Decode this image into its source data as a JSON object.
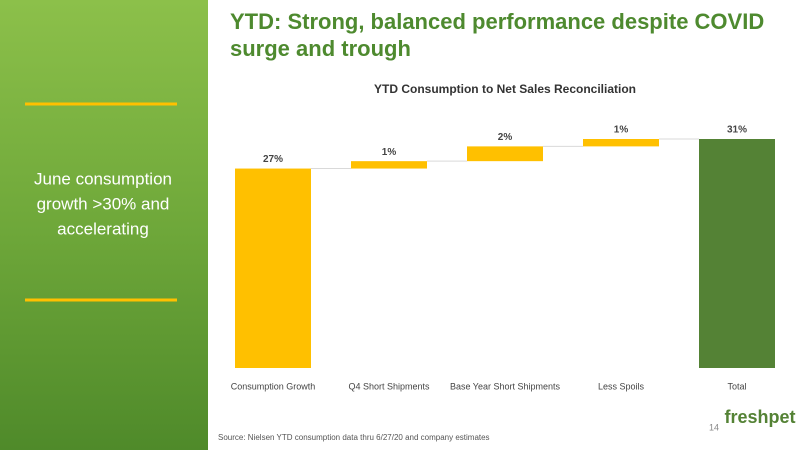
{
  "slide": {
    "title_lines": [
      "YTD:  Strong, balanced performance despite COVID",
      "surge and trough"
    ],
    "sidebar_lines": [
      "June consumption",
      "growth >30% and",
      "accelerating"
    ],
    "source": "Source:  Nielsen YTD consumption data thru 6/27/20 and company estimates",
    "page_number": "14",
    "logo": "freshpet"
  },
  "chart_data": {
    "type": "waterfall",
    "title": "YTD Consumption to Net Sales Reconciliation",
    "categories": [
      "Consumption Growth",
      "Q4 Short Shipments",
      "Base Year Short Shipments",
      "Less Spoils",
      "Total"
    ],
    "values": [
      27,
      1,
      2,
      1,
      31
    ],
    "value_labels": [
      "27%",
      "1%",
      "2%",
      "1%",
      "31%"
    ],
    "measures": [
      "relative",
      "relative",
      "relative",
      "relative",
      "total"
    ],
    "color": "#ffc000",
    "total_color": "#548235"
  }
}
